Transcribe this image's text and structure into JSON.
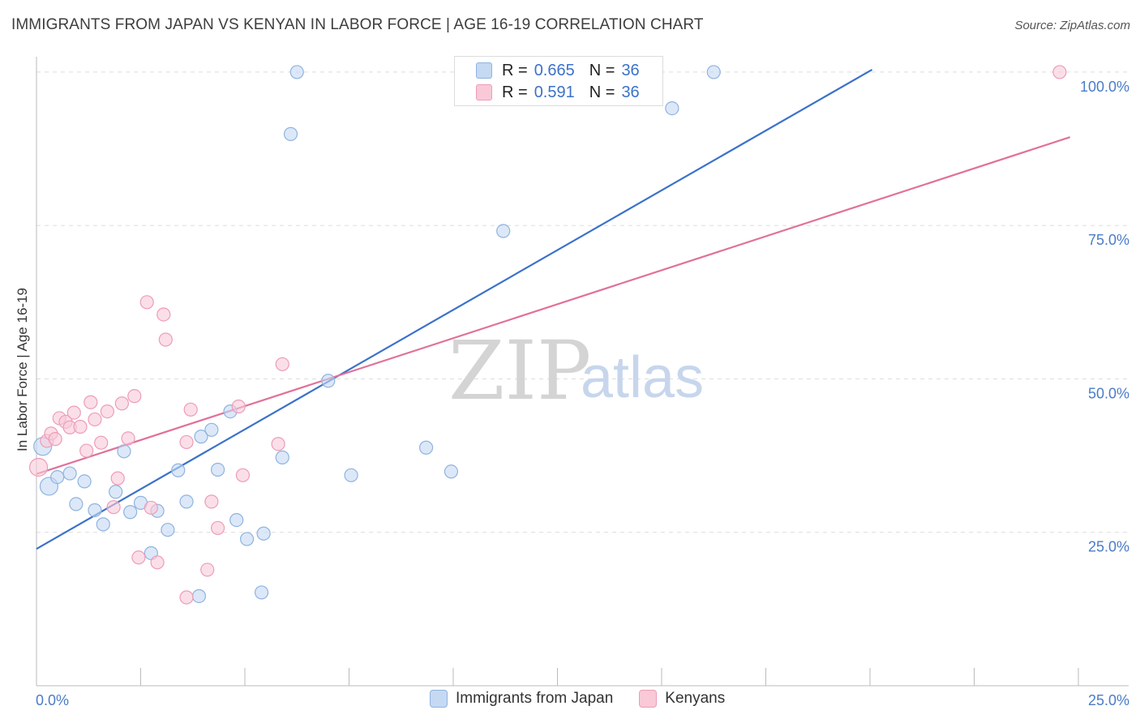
{
  "header": {
    "title": "IMMIGRANTS FROM JAPAN VS KENYAN IN LABOR FORCE | AGE 16-19 CORRELATION CHART",
    "source": "Source: ZipAtlas.com"
  },
  "watermark": {
    "zip": "ZIP",
    "atlas": "atlas"
  },
  "legend": {
    "rows": [
      {
        "r_label": "R =",
        "r_value": "0.665",
        "n_label": "N =",
        "n_value": "36"
      },
      {
        "r_label": "R =",
        "r_value": "0.591",
        "n_label": "N =",
        "n_value": "36"
      }
    ]
  },
  "bottom_legend": [
    "Immigrants from Japan",
    "Kenyans"
  ],
  "colors": {
    "blue_fill": "#c5d9f3",
    "blue_stroke": "#8fb3e0",
    "blue_line": "#3b72c9",
    "pink_fill": "#f9c9d8",
    "pink_stroke": "#ee9cb6",
    "pink_line": "#e0719a",
    "tick_text": "#4a7cc9",
    "grid": "#dddddd"
  },
  "chart_data": {
    "type": "scatter",
    "title": "IMMIGRANTS FROM JAPAN VS KENYAN IN LABOR FORCE | AGE 16-19 CORRELATION CHART",
    "xlabel": "",
    "ylabel": "In Labor Force | Age 16-19",
    "xlim": [
      0,
      25
    ],
    "ylim": [
      0,
      102.5
    ],
    "x_tick_labels": [
      "0.0%",
      "25.0%"
    ],
    "y_ticks": [
      25,
      50,
      75,
      100
    ],
    "y_tick_labels": [
      "25.0%",
      "50.0%",
      "75.0%",
      "100.0%"
    ],
    "grid": true,
    "legend_position": "top-center",
    "series": [
      {
        "name": "Immigrants from Japan",
        "r": 0.665,
        "n": 36,
        "trend": {
          "x": [
            0,
            20.05
          ],
          "y": [
            22.3,
            100.4
          ]
        },
        "points": [
          {
            "x": 0.15,
            "y": 39.0,
            "big": true
          },
          {
            "x": 0.3,
            "y": 32.5,
            "big": true
          },
          {
            "x": 0.5,
            "y": 34.0
          },
          {
            "x": 0.8,
            "y": 34.6
          },
          {
            "x": 0.95,
            "y": 29.6
          },
          {
            "x": 1.15,
            "y": 33.3
          },
          {
            "x": 1.4,
            "y": 28.6
          },
          {
            "x": 1.6,
            "y": 26.3
          },
          {
            "x": 1.9,
            "y": 31.6
          },
          {
            "x": 2.1,
            "y": 38.2
          },
          {
            "x": 2.25,
            "y": 28.3
          },
          {
            "x": 2.5,
            "y": 29.8
          },
          {
            "x": 2.75,
            "y": 21.6
          },
          {
            "x": 2.9,
            "y": 28.5
          },
          {
            "x": 3.15,
            "y": 25.4
          },
          {
            "x": 3.4,
            "y": 35.1
          },
          {
            "x": 3.6,
            "y": 30.0
          },
          {
            "x": 3.9,
            "y": 14.6
          },
          {
            "x": 3.95,
            "y": 40.6
          },
          {
            "x": 4.2,
            "y": 41.7
          },
          {
            "x": 4.35,
            "y": 35.2
          },
          {
            "x": 4.65,
            "y": 44.7
          },
          {
            "x": 4.8,
            "y": 27.0
          },
          {
            "x": 5.05,
            "y": 23.9
          },
          {
            "x": 5.4,
            "y": 15.2
          },
          {
            "x": 5.45,
            "y": 24.8
          },
          {
            "x": 5.9,
            "y": 37.2
          },
          {
            "x": 6.1,
            "y": 89.9
          },
          {
            "x": 6.25,
            "y": 100.0
          },
          {
            "x": 7.0,
            "y": 49.7
          },
          {
            "x": 7.55,
            "y": 34.3
          },
          {
            "x": 9.35,
            "y": 38.8
          },
          {
            "x": 9.95,
            "y": 34.9
          },
          {
            "x": 11.2,
            "y": 74.1
          },
          {
            "x": 15.25,
            "y": 94.1
          },
          {
            "x": 16.25,
            "y": 100.0
          }
        ]
      },
      {
        "name": "Kenyans",
        "r": 0.591,
        "n": 36,
        "trend": {
          "x": [
            0,
            24.8
          ],
          "y": [
            34.5,
            89.4
          ]
        },
        "points": [
          {
            "x": 0.05,
            "y": 35.6,
            "big": true
          },
          {
            "x": 0.25,
            "y": 39.9
          },
          {
            "x": 0.35,
            "y": 41.1
          },
          {
            "x": 0.45,
            "y": 40.2
          },
          {
            "x": 0.55,
            "y": 43.6
          },
          {
            "x": 0.7,
            "y": 43.0
          },
          {
            "x": 0.8,
            "y": 42.1
          },
          {
            "x": 0.9,
            "y": 44.5
          },
          {
            "x": 1.05,
            "y": 42.2
          },
          {
            "x": 1.2,
            "y": 38.3
          },
          {
            "x": 1.3,
            "y": 46.2
          },
          {
            "x": 1.4,
            "y": 43.4
          },
          {
            "x": 1.55,
            "y": 39.6
          },
          {
            "x": 1.7,
            "y": 44.7
          },
          {
            "x": 1.85,
            "y": 29.1
          },
          {
            "x": 1.95,
            "y": 33.8
          },
          {
            "x": 2.05,
            "y": 46.0
          },
          {
            "x": 2.2,
            "y": 40.3
          },
          {
            "x": 2.35,
            "y": 47.2
          },
          {
            "x": 2.45,
            "y": 20.9
          },
          {
            "x": 2.65,
            "y": 62.5
          },
          {
            "x": 2.75,
            "y": 29.0
          },
          {
            "x": 2.9,
            "y": 20.1
          },
          {
            "x": 3.05,
            "y": 60.5
          },
          {
            "x": 3.1,
            "y": 56.4
          },
          {
            "x": 3.6,
            "y": 39.7
          },
          {
            "x": 3.6,
            "y": 14.4
          },
          {
            "x": 3.7,
            "y": 45.0
          },
          {
            "x": 4.1,
            "y": 18.9
          },
          {
            "x": 4.2,
            "y": 30.0
          },
          {
            "x": 4.35,
            "y": 25.7
          },
          {
            "x": 4.95,
            "y": 34.3
          },
          {
            "x": 4.85,
            "y": 45.5
          },
          {
            "x": 5.8,
            "y": 39.4
          },
          {
            "x": 5.9,
            "y": 52.4
          },
          {
            "x": 24.55,
            "y": 100.0
          }
        ]
      }
    ]
  }
}
